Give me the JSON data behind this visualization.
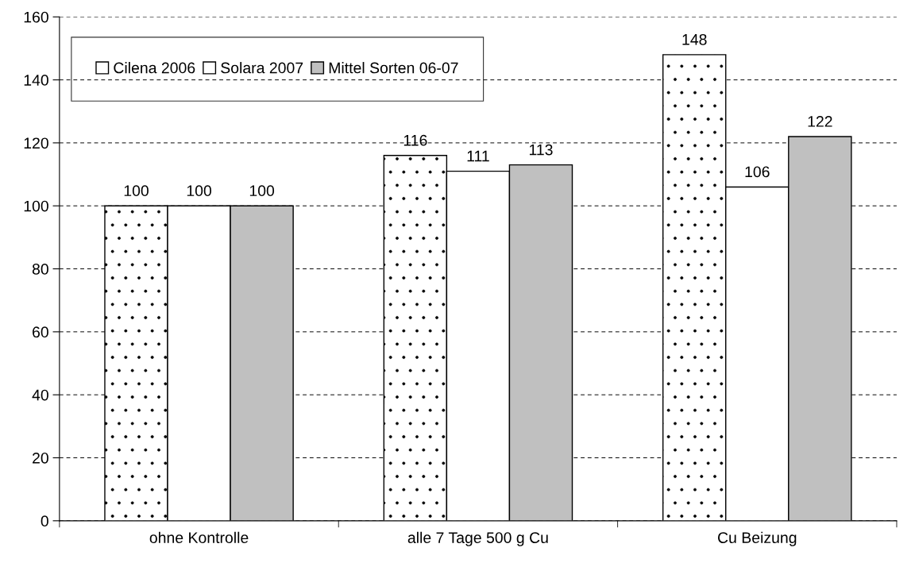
{
  "chart_data": {
    "type": "bar",
    "categories": [
      "ohne Kontrolle",
      "alle 7 Tage 500 g Cu",
      "Cu Beizung"
    ],
    "series": [
      {
        "name": "Cilena 2006",
        "color": "#ffffff",
        "values": [
          100,
          116,
          148
        ]
      },
      {
        "name": "Solara 2007",
        "color": "#ffffff",
        "values": [
          100,
          111,
          106
        ]
      },
      {
        "name": "Mittel Sorten 06-07",
        "color": "#c0c0c0",
        "values": [
          100,
          113,
          122
        ]
      }
    ],
    "ylim": [
      0,
      160
    ],
    "yticks": [
      0,
      20,
      40,
      60,
      80,
      100,
      120,
      140,
      160
    ],
    "grid": "y",
    "legend": "top left",
    "data_labels": true
  }
}
